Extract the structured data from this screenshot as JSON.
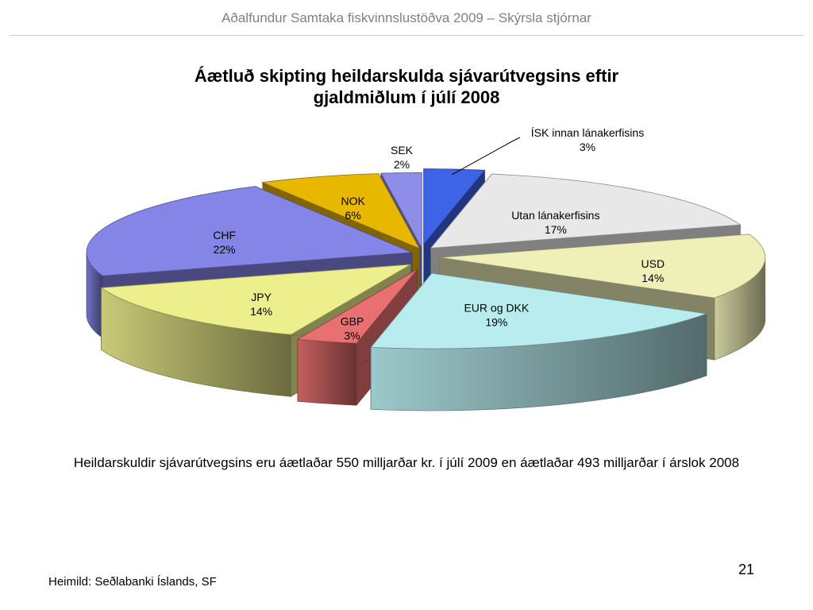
{
  "header": {
    "title": "Aðalfundur Samtaka fiskvinnslustöðva 2009 – Skýrsla stjórnar"
  },
  "chart_data": {
    "type": "pie",
    "title": "Áætluð skipting heildarskulda sjávarútvegsins eftir gjaldmiðlum í júlí 2008",
    "title_lines": [
      "Áætluð skipting heildarskulda sjávarútvegsins eftir",
      "gjaldmiðlum í júlí 2008"
    ],
    "labels": [
      "ÍSK innan lánakerfisins",
      "Utan lánakerfisins",
      "USD",
      "EUR og DKK",
      "GBP",
      "JPY",
      "CHF",
      "NOK",
      "SEK"
    ],
    "values": [
      3,
      17,
      14,
      19,
      3,
      14,
      22,
      6,
      2
    ],
    "value_labels": [
      "3%",
      "17%",
      "14%",
      "19%",
      "3%",
      "14%",
      "22%",
      "6%",
      "2%"
    ],
    "colors": [
      "#3D63E6",
      "#E8E8E8",
      "#EFEFB8",
      "#B8ECEF",
      "#E87070",
      "#EDEE8C",
      "#8585E8",
      "#E8B800",
      "#8E8EE8"
    ],
    "exploded": true,
    "style": "3d"
  },
  "caption": "Heildarskuldir sjávarútvegsins eru áætlaðar 550 milljarðar kr. í júlí 2009 en áætlaðar 493 milljarðar í árslok 2008",
  "footer": {
    "page_number": "21",
    "source": "Heimild: Seðlabanki Íslands, SF"
  }
}
